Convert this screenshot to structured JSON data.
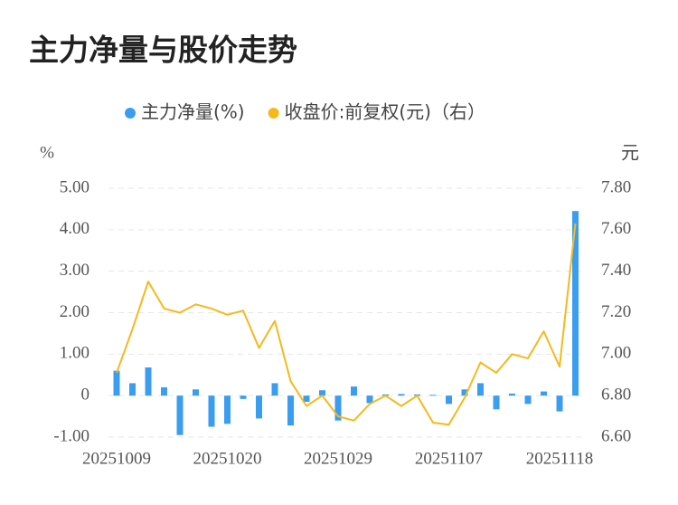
{
  "chart_data": {
    "type": "bar-line",
    "title": "主力净量与股价走势",
    "y_unit": "%",
    "y2_unit": "元",
    "categories": [
      "20251009",
      null,
      null,
      null,
      null,
      null,
      null,
      "20251020",
      null,
      null,
      null,
      null,
      null,
      null,
      "20251029",
      null,
      null,
      null,
      null,
      null,
      null,
      "20251107",
      null,
      null,
      null,
      null,
      null,
      null,
      "20251118",
      null
    ],
    "series": [
      {
        "name": "主力净量(%)",
        "type": "bar",
        "color": "#3a9df0",
        "axis": "y",
        "values": [
          0.6,
          0.3,
          0.68,
          0.2,
          -0.95,
          0.15,
          -0.75,
          -0.68,
          -0.08,
          -0.55,
          0.3,
          -0.72,
          -0.15,
          0.13,
          -0.6,
          0.22,
          -0.18,
          0.03,
          0.04,
          0.03,
          0.02,
          -0.2,
          0.15,
          0.3,
          -0.33,
          0.05,
          -0.2,
          0.1,
          -0.38,
          4.45
        ]
      },
      {
        "name": "收盘价:前复权(元)（右）",
        "type": "line",
        "color": "#f5b91b",
        "axis": "y2",
        "values": [
          6.91,
          7.12,
          7.35,
          7.22,
          7.2,
          7.24,
          7.22,
          7.19,
          7.21,
          7.03,
          7.16,
          6.87,
          6.75,
          6.8,
          6.7,
          6.68,
          6.76,
          6.8,
          6.75,
          6.8,
          6.67,
          6.66,
          6.79,
          6.96,
          6.91,
          7.0,
          6.98,
          7.11,
          6.94,
          7.63
        ]
      }
    ],
    "ylim": [
      -1,
      5
    ],
    "yticks": [
      {
        "value": -1,
        "label": "-1.00"
      },
      0,
      {
        "value": 1,
        "label": "1.00"
      },
      {
        "value": 2,
        "label": "2.00"
      },
      {
        "value": 3,
        "label": "3.00"
      },
      {
        "value": 4,
        "label": "4.00"
      },
      {
        "value": 5,
        "label": "5.00"
      }
    ],
    "y2lim": [
      6.6,
      7.8
    ],
    "y2ticks": [
      {
        "value": 6.6,
        "label": "6.60"
      },
      {
        "value": 6.8,
        "label": "6.80"
      },
      {
        "value": 7.0,
        "label": "7.00"
      },
      {
        "value": 7.2,
        "label": "7.20"
      },
      {
        "value": 7.4,
        "label": "7.40"
      },
      {
        "value": 7.6,
        "label": "7.60"
      },
      {
        "value": 7.8,
        "label": "7.80"
      }
    ],
    "grid": true
  }
}
